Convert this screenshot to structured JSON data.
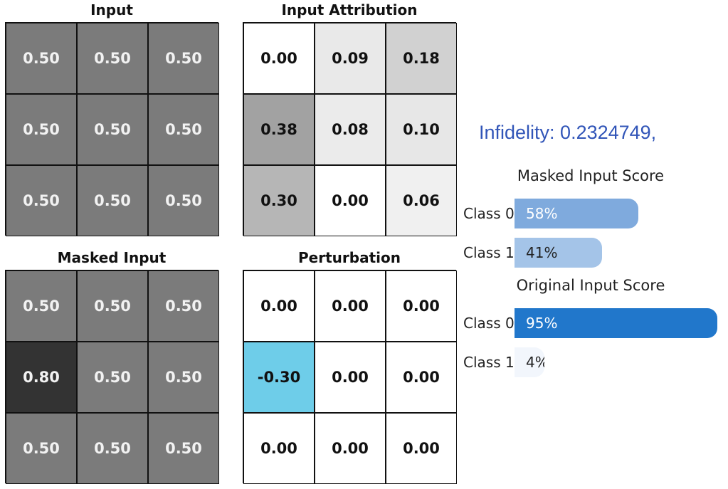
{
  "panels": {
    "input": {
      "title": "Input",
      "cells": [
        [
          "0.50",
          "0.50",
          "0.50"
        ],
        [
          "0.50",
          "0.50",
          "0.50"
        ],
        [
          "0.50",
          "0.50",
          "0.50"
        ]
      ],
      "colors": [
        [
          "#7b7b7b",
          "#7b7b7b",
          "#7b7b7b"
        ],
        [
          "#7b7b7b",
          "#7b7b7b",
          "#7b7b7b"
        ],
        [
          "#7b7b7b",
          "#7b7b7b",
          "#7b7b7b"
        ]
      ],
      "text_colors": [
        [
          "#f2f2f2",
          "#f2f2f2",
          "#f2f2f2"
        ],
        [
          "#f2f2f2",
          "#f2f2f2",
          "#f2f2f2"
        ],
        [
          "#f2f2f2",
          "#f2f2f2",
          "#f2f2f2"
        ]
      ]
    },
    "attribution": {
      "title": "Input Attribution",
      "cells": [
        [
          "0.00",
          "0.09",
          "0.18"
        ],
        [
          "0.38",
          "0.08",
          "0.10"
        ],
        [
          "0.30",
          "0.00",
          "0.06"
        ]
      ],
      "colors": [
        [
          "#ffffff",
          "#e9e9e9",
          "#d1d1d1"
        ],
        [
          "#a2a2a2",
          "#ebebeb",
          "#e7e7e7"
        ],
        [
          "#b6b6b6",
          "#ffffff",
          "#f0f0f0"
        ]
      ],
      "text_colors": [
        [
          "#111111",
          "#111111",
          "#111111"
        ],
        [
          "#111111",
          "#111111",
          "#111111"
        ],
        [
          "#111111",
          "#111111",
          "#111111"
        ]
      ]
    },
    "masked": {
      "title": "Masked Input",
      "cells": [
        [
          "0.50",
          "0.50",
          "0.50"
        ],
        [
          "0.80",
          "0.50",
          "0.50"
        ],
        [
          "0.50",
          "0.50",
          "0.50"
        ]
      ],
      "colors": [
        [
          "#7b7b7b",
          "#7b7b7b",
          "#7b7b7b"
        ],
        [
          "#333333",
          "#7b7b7b",
          "#7b7b7b"
        ],
        [
          "#7b7b7b",
          "#7b7b7b",
          "#7b7b7b"
        ]
      ],
      "text_colors": [
        [
          "#f2f2f2",
          "#f2f2f2",
          "#f2f2f2"
        ],
        [
          "#f2f2f2",
          "#f2f2f2",
          "#f2f2f2"
        ],
        [
          "#f2f2f2",
          "#f2f2f2",
          "#f2f2f2"
        ]
      ]
    },
    "perturbation": {
      "title": "Perturbation",
      "cells": [
        [
          "0.00",
          "0.00",
          "0.00"
        ],
        [
          "-0.30",
          "0.00",
          "0.00"
        ],
        [
          "0.00",
          "0.00",
          "0.00"
        ]
      ],
      "colors": [
        [
          "#ffffff",
          "#ffffff",
          "#ffffff"
        ],
        [
          "#6ecde9",
          "#ffffff",
          "#ffffff"
        ],
        [
          "#ffffff",
          "#ffffff",
          "#ffffff"
        ]
      ],
      "text_colors": [
        [
          "#111111",
          "#111111",
          "#111111"
        ],
        [
          "#111111",
          "#111111",
          "#111111"
        ],
        [
          "#111111",
          "#111111",
          "#111111"
        ]
      ]
    }
  },
  "infidelity_text": "Infidelity: 0.2324749,",
  "scores": {
    "masked": {
      "title": "Masked Input Score",
      "rows": [
        {
          "label": "Class 0",
          "value": 58,
          "text": "58%",
          "color": "#7faadd",
          "text_color": "#ffffff"
        },
        {
          "label": "Class 1",
          "value": 41,
          "text": "41%",
          "color": "#a4c4e8",
          "text_color": "#222222"
        }
      ]
    },
    "original": {
      "title": "Original Input Score",
      "rows": [
        {
          "label": "Class 0",
          "value": 95,
          "text": "95%",
          "color": "#2177cb",
          "text_color": "#ffffff"
        },
        {
          "label": "Class 1",
          "value": 4,
          "text": "4%",
          "color": "#f2f6fc",
          "text_color": "#222222"
        }
      ]
    }
  }
}
